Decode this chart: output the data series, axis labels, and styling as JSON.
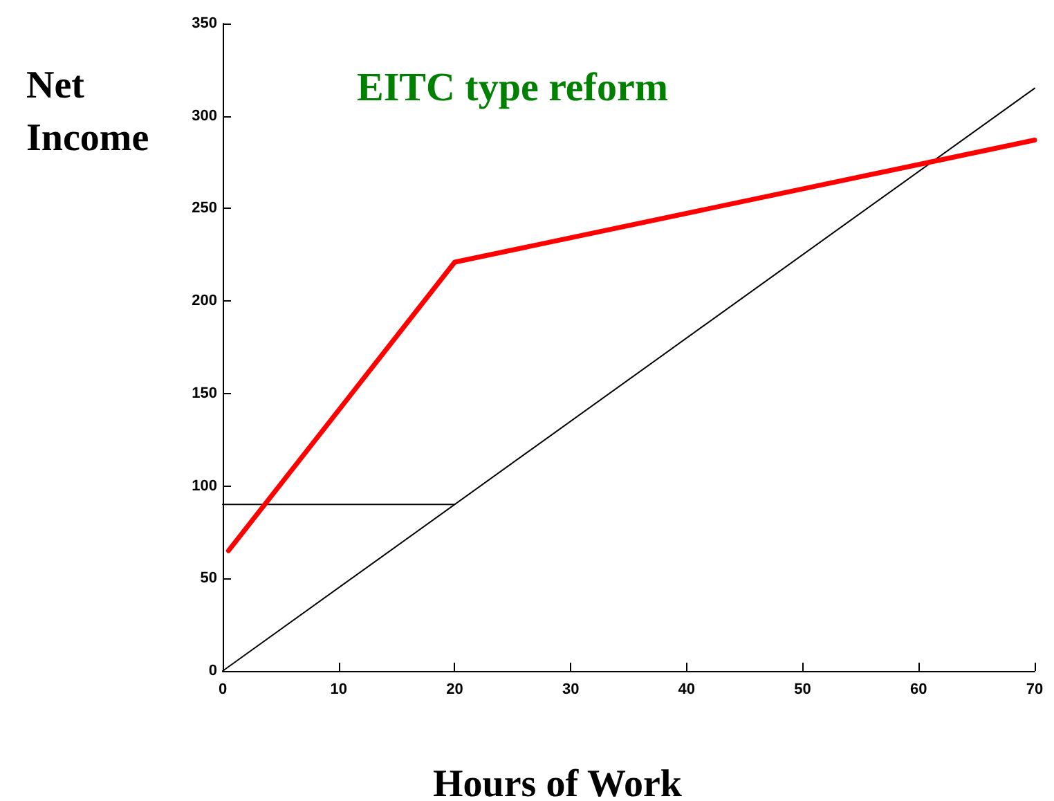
{
  "chart_data": {
    "type": "line",
    "title": "EITC type reform",
    "xlabel": "Hours of Work",
    "ylabel": "Net Income",
    "series": [
      {
        "color": "#000000",
        "x": [
          0,
          70
        ],
        "values": [
          0,
          315
        ]
      },
      {
        "color": "#000000",
        "x": [
          0,
          20
        ],
        "values": [
          90,
          90
        ]
      },
      {
        "color": "#ff0000",
        "x": [
          0.5,
          20,
          70
        ],
        "values": [
          65,
          221,
          287
        ]
      }
    ],
    "xlim": [
      0,
      70
    ],
    "xticks": [
      0,
      10,
      20,
      30,
      40,
      50,
      60,
      70
    ],
    "ylim": [
      0,
      350
    ],
    "yticks": [
      0,
      50,
      100,
      150,
      200,
      250,
      300,
      350
    ],
    "line_style": "solid"
  }
}
